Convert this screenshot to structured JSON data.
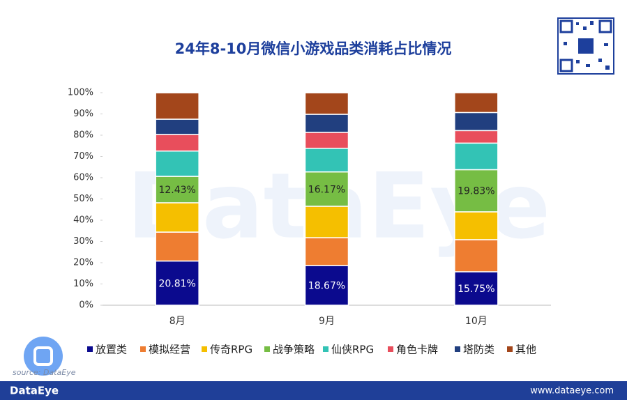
{
  "chart_data": {
    "type": "stacked_bar",
    "title": "24年8-10月微信小游戏品类消耗占比情况",
    "categories": [
      "8月",
      "9月",
      "10月"
    ],
    "series": [
      {
        "name": "放置类",
        "color": "#0b0a8e",
        "values": [
          20.81,
          18.67,
          15.75
        ],
        "value_labels": [
          "20.81%",
          "18.67%",
          "15.75%"
        ]
      },
      {
        "name": "模拟经营",
        "color": "#ee7d31",
        "values": [
          13.6,
          13.1,
          15.1
        ]
      },
      {
        "name": "传奇RPG",
        "color": "#f5bf00",
        "values": [
          13.8,
          14.8,
          13.1
        ]
      },
      {
        "name": "战争策略",
        "color": "#76bd44",
        "values": [
          12.43,
          16.17,
          19.83
        ],
        "value_labels": [
          "12.43%",
          "16.17%",
          "19.83%"
        ]
      },
      {
        "name": "仙侠RPG",
        "color": "#33c3b5",
        "values": [
          11.9,
          11.1,
          12.5
        ]
      },
      {
        "name": "角色卡牌",
        "color": "#e84e5c",
        "values": [
          7.8,
          7.5,
          5.9
        ]
      },
      {
        "name": "塔防类",
        "color": "#213f7f",
        "values": [
          7.2,
          8.5,
          8.5
        ]
      },
      {
        "name": "其他",
        "color": "#a3461b",
        "values": [
          12.4,
          10.1,
          9.3
        ]
      }
    ],
    "ylim": [
      0,
      100
    ],
    "yticks": [
      {
        "value": 0,
        "label": "0%"
      },
      {
        "value": 10,
        "label": "10%"
      },
      {
        "value": 20,
        "label": "20%"
      },
      {
        "value": 30,
        "label": "30%"
      },
      {
        "value": 40,
        "label": "40%"
      },
      {
        "value": 50,
        "label": "50%"
      },
      {
        "value": 60,
        "label": "60%"
      },
      {
        "value": 70,
        "label": "70%"
      },
      {
        "value": 80,
        "label": "80%"
      },
      {
        "value": 90,
        "label": "90%"
      },
      {
        "value": 100,
        "label": "100%"
      }
    ],
    "legend": "bottom"
  },
  "source": "source: DataEye",
  "footer": {
    "brand": "DataEye",
    "url": "www.dataeye.com"
  }
}
